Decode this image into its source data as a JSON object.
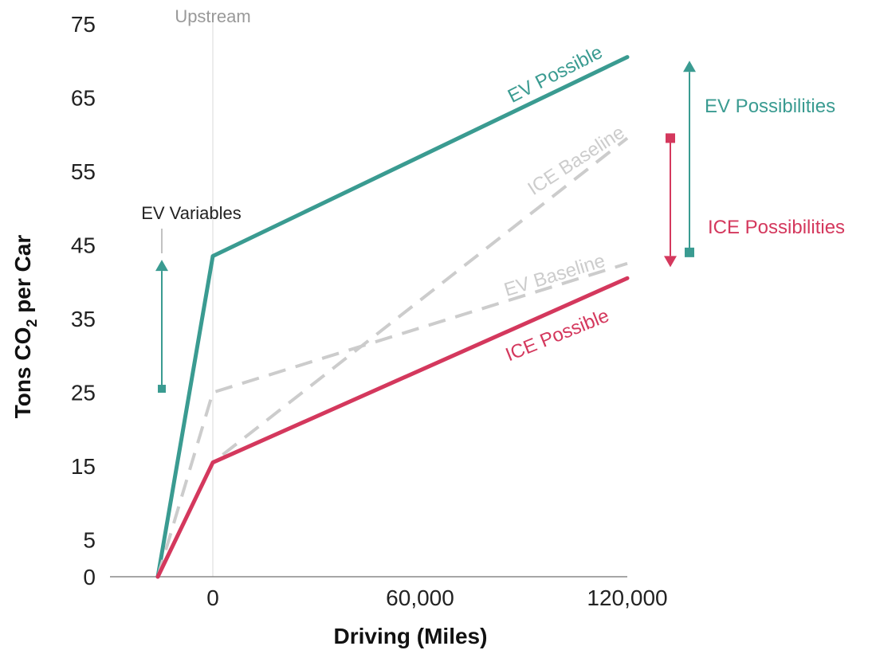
{
  "colors": {
    "ev": "#3a9b91",
    "ice": "#d4385d",
    "baseline": "#cccccc",
    "upstream_line": "#e6e6e6",
    "axis": "#888888",
    "text": "#222222",
    "upstream_text": "#999999"
  },
  "chart_data": {
    "type": "line",
    "title": "",
    "xlabel": "Driving (Miles)",
    "ylabel_main": "Tons CO",
    "ylabel_sub": "2",
    "ylabel_rest": " per Car",
    "ylim": [
      0,
      75
    ],
    "y_ticks": [
      "0",
      "5",
      "15",
      "25",
      "35",
      "45",
      "55",
      "65",
      "75"
    ],
    "y_tick_values": [
      0,
      5,
      15,
      25,
      35,
      45,
      55,
      65,
      75
    ],
    "x_ticks": [
      "0",
      "60,000",
      "120,000"
    ],
    "x_tick_values": [
      0,
      60000,
      120000
    ],
    "upstream_label": "Upstream",
    "series": [
      {
        "name": "EV Possible",
        "style": "solid",
        "color": "ev",
        "x": [
          "upstream",
          0,
          120000
        ],
        "y": [
          0,
          43.5,
          70.5
        ]
      },
      {
        "name": "ICE Baseline",
        "style": "dashed",
        "color": "baseline",
        "x": [
          "upstream",
          0,
          120000
        ],
        "y": [
          0,
          15.5,
          59.5
        ]
      },
      {
        "name": "EV Baseline",
        "style": "dashed",
        "color": "baseline",
        "x": [
          "upstream",
          0,
          120000
        ],
        "y": [
          0,
          25,
          42.5
        ]
      },
      {
        "name": "ICE Possible",
        "style": "solid",
        "color": "ice",
        "x": [
          "upstream",
          0,
          120000
        ],
        "y": [
          0,
          15.5,
          40.5
        ]
      }
    ],
    "annotations": {
      "ev_variables": {
        "label": "EV Variables",
        "from": 25.5,
        "to": 43
      },
      "ev_possibilities": {
        "label": "EV Possibilities",
        "from": 44,
        "to": 70
      },
      "ice_possibilities": {
        "label": "ICE Possibilities",
        "from": 59.5,
        "to": 42
      }
    }
  }
}
